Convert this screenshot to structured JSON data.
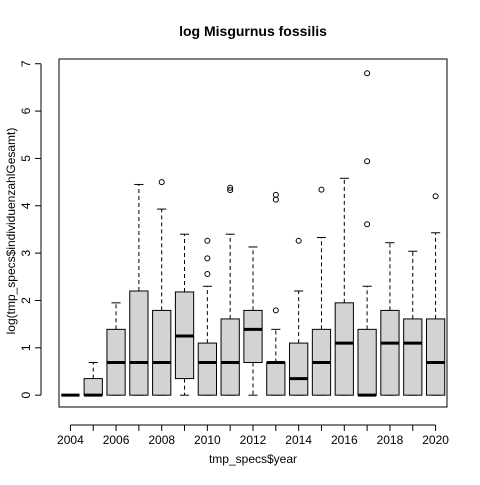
{
  "chart_data": {
    "type": "boxplot",
    "title": "log Misgurnus fossilis",
    "xlabel": "tmp_specs$year",
    "ylabel": "log(tmp_specs$individuenzahlGesamt)",
    "ylim": [
      -0.25,
      7.1
    ],
    "y_ticks": [
      "0",
      "1",
      "2",
      "3",
      "4",
      "5",
      "6",
      "7"
    ],
    "x_tick_labels": [
      "2004",
      "2006",
      "2008",
      "2010",
      "2012",
      "2014",
      "2016",
      "2018",
      "2020"
    ],
    "grid": false,
    "box_fill": "#d3d3d3",
    "categories": [
      "2004",
      "2005",
      "2006",
      "2007",
      "2008",
      "2009",
      "2010",
      "2011",
      "2012",
      "2013",
      "2014",
      "2015",
      "2016",
      "2017",
      "2018",
      "2019",
      "2020"
    ],
    "boxes": [
      {
        "year": "2004",
        "lo": 0,
        "q1": 0,
        "median": 0,
        "q3": 0,
        "hi": 0,
        "outliers": []
      },
      {
        "year": "2005",
        "lo": 0,
        "q1": 0,
        "median": 0,
        "q3": 0.35,
        "hi": 0.69,
        "outliers": []
      },
      {
        "year": "2006",
        "lo": 0,
        "q1": 0,
        "median": 0.69,
        "q3": 1.39,
        "hi": 1.95,
        "outliers": []
      },
      {
        "year": "2007",
        "lo": 0,
        "q1": 0,
        "median": 0.69,
        "q3": 2.2,
        "hi": 4.45,
        "outliers": []
      },
      {
        "year": "2008",
        "lo": 0,
        "q1": 0,
        "median": 0.69,
        "q3": 1.79,
        "hi": 3.93,
        "outliers": [
          4.5
        ]
      },
      {
        "year": "2009",
        "lo": 0,
        "q1": 0.35,
        "median": 1.25,
        "q3": 2.18,
        "hi": 3.4,
        "outliers": []
      },
      {
        "year": "2010",
        "lo": 0,
        "q1": 0,
        "median": 0.69,
        "q3": 1.1,
        "hi": 2.3,
        "outliers": [
          2.56,
          2.89,
          3.26
        ]
      },
      {
        "year": "2011",
        "lo": 0,
        "q1": 0,
        "median": 0.69,
        "q3": 1.61,
        "hi": 3.4,
        "outliers": [
          4.33,
          4.38
        ]
      },
      {
        "year": "2012",
        "lo": 0,
        "q1": 0.69,
        "median": 1.39,
        "q3": 1.79,
        "hi": 3.13,
        "outliers": []
      },
      {
        "year": "2013",
        "lo": 0,
        "q1": 0,
        "median": 0.69,
        "q3": 0.69,
        "hi": 1.39,
        "outliers": [
          1.79,
          4.13,
          4.23
        ]
      },
      {
        "year": "2014",
        "lo": 0,
        "q1": 0,
        "median": 0.35,
        "q3": 1.1,
        "hi": 2.2,
        "outliers": [
          3.26
        ]
      },
      {
        "year": "2015",
        "lo": 0,
        "q1": 0,
        "median": 0.69,
        "q3": 1.39,
        "hi": 3.33,
        "outliers": [
          4.34
        ]
      },
      {
        "year": "2016",
        "lo": 0,
        "q1": 0,
        "median": 1.1,
        "q3": 1.95,
        "hi": 4.58,
        "outliers": []
      },
      {
        "year": "2017",
        "lo": 0,
        "q1": 0,
        "median": 0,
        "q3": 1.39,
        "hi": 2.3,
        "outliers": [
          3.61,
          4.94,
          6.8
        ]
      },
      {
        "year": "2018",
        "lo": 0,
        "q1": 0,
        "median": 1.1,
        "q3": 1.79,
        "hi": 3.22,
        "outliers": []
      },
      {
        "year": "2019",
        "lo": 0,
        "q1": 0,
        "median": 1.1,
        "q3": 1.61,
        "hi": 3.04,
        "outliers": []
      },
      {
        "year": "2020",
        "lo": 0,
        "q1": 0,
        "median": 0.69,
        "q3": 1.61,
        "hi": 3.43,
        "outliers": [
          4.2
        ]
      }
    ]
  }
}
